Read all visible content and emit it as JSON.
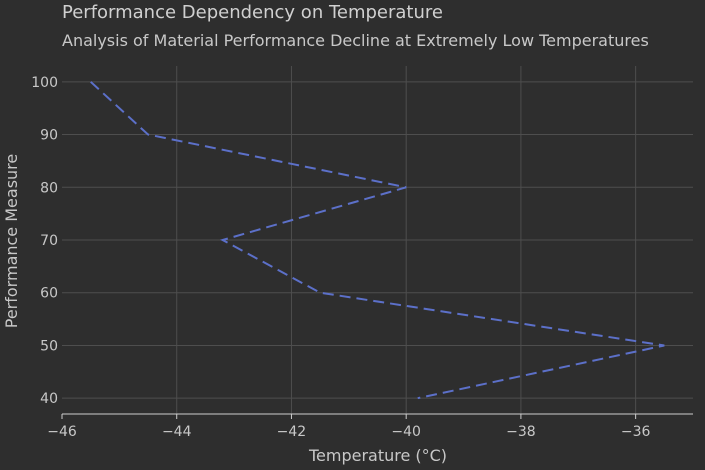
{
  "chart_data": {
    "type": "line",
    "title": "Performance Dependency on Temperature",
    "subtitle": "Analysis of Material Performance Decline at Extremely Low Temperatures",
    "xlabel": "Temperature (°C)",
    "ylabel": "Performance Measure",
    "xlim": [
      -46,
      -35
    ],
    "ylim": [
      37,
      103
    ],
    "x_ticks": [
      -46,
      -44,
      -42,
      -40,
      -38,
      -36
    ],
    "x_tick_labels": [
      "−46",
      "−44",
      "−42",
      "−40",
      "−38",
      "−36"
    ],
    "y_ticks": [
      40,
      50,
      60,
      70,
      80,
      90,
      100
    ],
    "y_tick_labels": [
      "40",
      "50",
      "60",
      "70",
      "80",
      "90",
      "100"
    ],
    "grid": true,
    "line_style": "dashed",
    "colors": {
      "background": "#2e2e2e",
      "line": "#5c70c9"
    },
    "series": [
      {
        "x": [
          -45.5,
          -44.5,
          -40.0,
          -43.2,
          -41.5,
          -35.5,
          -39.8
        ],
        "y": [
          100,
          90,
          80,
          70,
          60,
          50,
          40
        ]
      }
    ]
  }
}
